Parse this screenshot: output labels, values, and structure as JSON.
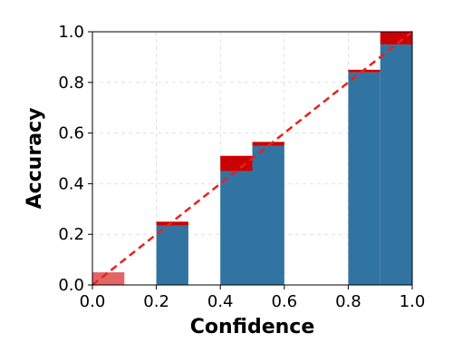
{
  "chart_data": {
    "type": "bar",
    "title": "",
    "xlabel": "Confidence",
    "ylabel": "Accuracy",
    "xlim": [
      0.0,
      1.0
    ],
    "ylim": [
      0.0,
      1.0
    ],
    "xticks": [
      "0.0",
      "0.2",
      "0.4",
      "0.6",
      "0.8",
      "1.0"
    ],
    "yticks": [
      "0.0",
      "0.2",
      "0.4",
      "0.6",
      "0.8",
      "1.0"
    ],
    "grid": true,
    "bins": [
      {
        "lo": 0.0,
        "hi": 0.1,
        "accuracy": 0.0,
        "confidence": 0.05
      },
      {
        "lo": 0.2,
        "hi": 0.3,
        "accuracy": 0.235,
        "confidence": 0.25
      },
      {
        "lo": 0.4,
        "hi": 0.5,
        "accuracy": 0.45,
        "confidence": 0.51
      },
      {
        "lo": 0.5,
        "hi": 0.6,
        "accuracy": 0.55,
        "confidence": 0.565
      },
      {
        "lo": 0.8,
        "hi": 0.9,
        "accuracy": 0.84,
        "confidence": 0.85
      },
      {
        "lo": 0.9,
        "hi": 1.0,
        "accuracy": 0.95,
        "confidence": 1.0
      }
    ],
    "diagonal": [
      [
        0.0,
        0.0
      ],
      [
        1.0,
        1.0
      ]
    ],
    "colors": {
      "accuracy_bar": "#3274a1",
      "gap_over": "#cc0000",
      "gap_under": "#e05555",
      "diagonal": "#e8211c",
      "grid": "#d9d9d9"
    }
  }
}
